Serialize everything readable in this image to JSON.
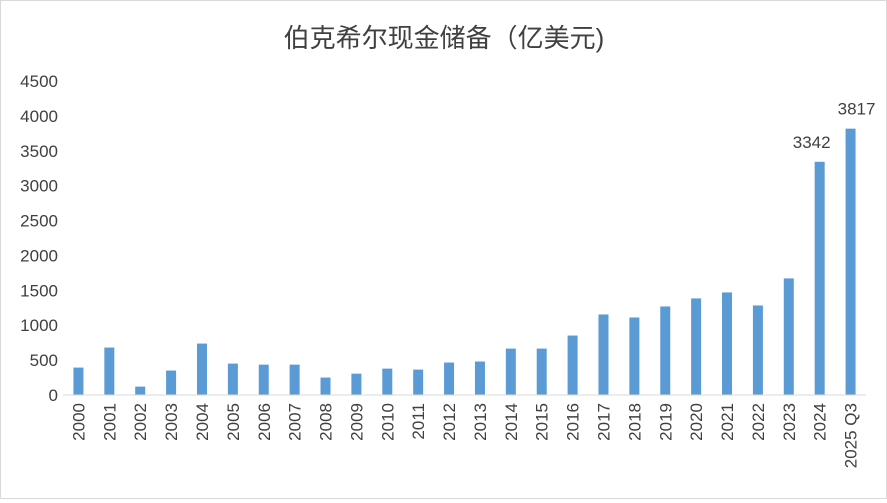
{
  "chart_data": {
    "type": "bar",
    "title": "伯克希尔现金储备（亿美元)",
    "xlabel": "",
    "ylabel": "",
    "ylim": [
      0,
      4500
    ],
    "yticks": [
      0,
      500,
      1000,
      1500,
      2000,
      2500,
      3000,
      3500,
      4000,
      4500
    ],
    "grid": false,
    "legend": "none",
    "bar_color": "#5b9bd5",
    "categories": [
      "2000",
      "2001",
      "2002",
      "2003",
      "2004",
      "2005",
      "2006",
      "2007",
      "2008",
      "2009",
      "2010",
      "2011",
      "2012",
      "2013",
      "2014",
      "2015",
      "2016",
      "2017",
      "2018",
      "2019",
      "2020",
      "2021",
      "2022",
      "2023",
      "2024",
      "2025 Q3"
    ],
    "values": [
      393,
      680,
      120,
      350,
      737,
      450,
      435,
      435,
      250,
      306,
      378,
      364,
      465,
      480,
      665,
      665,
      852,
      1154,
      1111,
      1269,
      1384,
      1470,
      1283,
      1671,
      3342,
      3817
    ],
    "data_labels": [
      {
        "category": "2024",
        "text": "3342"
      },
      {
        "category": "2025 Q3",
        "text": "3817"
      }
    ]
  }
}
